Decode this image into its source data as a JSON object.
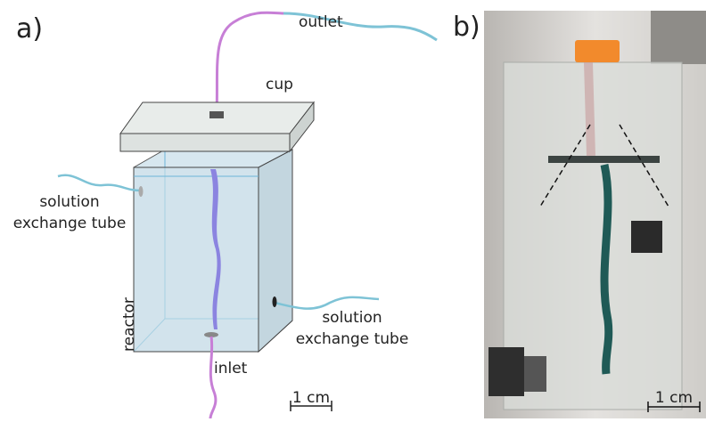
{
  "panel_a": {
    "label": "a)",
    "outlet": "outlet",
    "cup": "cup",
    "left_tube_label": [
      "solution",
      "exchange tube"
    ],
    "right_tube_label": [
      "solution",
      "exchange tube"
    ],
    "reactor": "reactor",
    "inlet": "inlet",
    "scale_bar": "1 cm"
  },
  "panel_b": {
    "label": "b)",
    "scale_bar": "1 cm"
  }
}
